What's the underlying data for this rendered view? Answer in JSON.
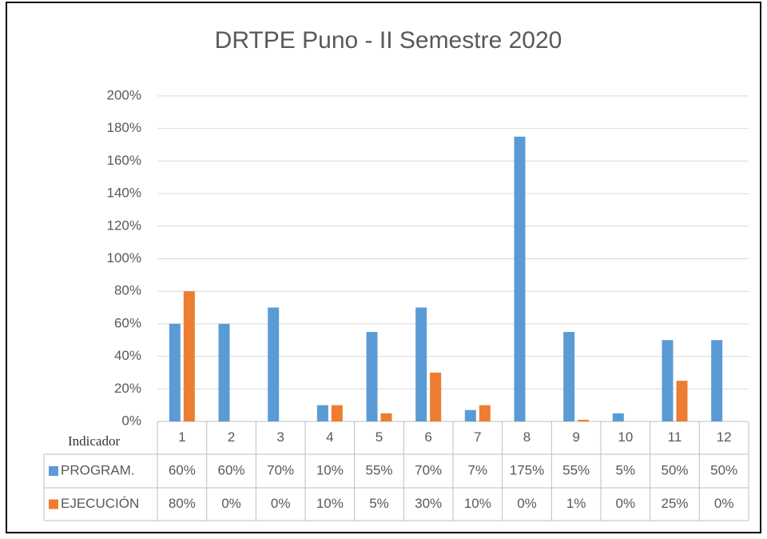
{
  "chart_data": {
    "type": "bar",
    "title": "DRTPE Puno - II Semestre 2020",
    "xlabel": "Indicador",
    "categories": [
      "1",
      "2",
      "3",
      "4",
      "5",
      "6",
      "7",
      "8",
      "9",
      "10",
      "11",
      "12"
    ],
    "series": [
      {
        "name": "PROGRAM.",
        "color": "#5b9bd5",
        "values": [
          60,
          60,
          70,
          10,
          55,
          70,
          7,
          175,
          55,
          5,
          50,
          50
        ],
        "value_labels": [
          "60%",
          "60%",
          "70%",
          "10%",
          "55%",
          "70%",
          "7%",
          "175%",
          "55%",
          "5%",
          "50%",
          "50%"
        ]
      },
      {
        "name": "EJECUCIÓN",
        "color": "#ed7d31",
        "values": [
          80,
          0,
          0,
          10,
          5,
          30,
          10,
          0,
          1,
          0,
          25,
          0
        ],
        "value_labels": [
          "80%",
          "0%",
          "0%",
          "10%",
          "5%",
          "30%",
          "10%",
          "0%",
          "1%",
          "0%",
          "25%",
          "0%"
        ]
      }
    ],
    "ylim": [
      0,
      200
    ],
    "yticks": [
      {
        "value": 0,
        "label": "0%"
      },
      {
        "value": 20,
        "label": "20%"
      },
      {
        "value": 40,
        "label": "40%"
      },
      {
        "value": 60,
        "label": "60%"
      },
      {
        "value": 80,
        "label": "80%"
      },
      {
        "value": 100,
        "label": "100%"
      },
      {
        "value": 120,
        "label": "120%"
      },
      {
        "value": 140,
        "label": "140%"
      },
      {
        "value": 160,
        "label": "160%"
      },
      {
        "value": 180,
        "label": "180%"
      },
      {
        "value": 200,
        "label": "200%"
      }
    ],
    "grid": true
  }
}
